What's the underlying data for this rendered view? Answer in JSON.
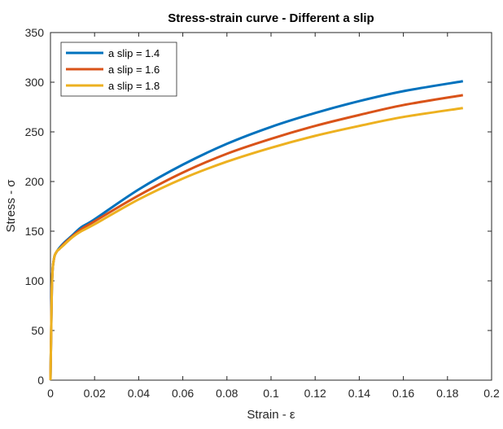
{
  "chart_data": {
    "type": "line",
    "title": "Stress-strain curve - Different a slip",
    "xlabel": "Strain - ε",
    "ylabel": "Stress - σ",
    "xlim": [
      0,
      0.2
    ],
    "ylim": [
      0,
      350
    ],
    "xticks": [
      0,
      0.02,
      0.04,
      0.06,
      0.08,
      0.1,
      0.12,
      0.14,
      0.16,
      0.18,
      0.2
    ],
    "xtick_labels": [
      "0",
      "0.02",
      "0.04",
      "0.06",
      "0.08",
      "0.1",
      "0.12",
      "0.14",
      "0.16",
      "0.18",
      "0.2"
    ],
    "yticks": [
      0,
      50,
      100,
      150,
      200,
      250,
      300,
      350
    ],
    "ytick_labels": [
      "0",
      "50",
      "100",
      "150",
      "200",
      "250",
      "300",
      "350"
    ],
    "grid": false,
    "legend_position": "top-left",
    "series": [
      {
        "name": "a slip = 1.4",
        "color": "#0072BD",
        "x": [
          0,
          0.0003,
          0.0006,
          0.001,
          0.0015,
          0.002,
          0.003,
          0.004,
          0.006,
          0.01,
          0.014,
          0.02,
          0.04,
          0.06,
          0.08,
          0.1,
          0.12,
          0.14,
          0.16,
          0.187
        ],
        "y": [
          0,
          45,
          90,
          112,
          121,
          126,
          130,
          133,
          138,
          146,
          154,
          162,
          192,
          217,
          238,
          255,
          269,
          281,
          291,
          301
        ]
      },
      {
        "name": "a slip = 1.6",
        "color": "#D95319",
        "x": [
          0,
          0.0003,
          0.0006,
          0.001,
          0.0015,
          0.002,
          0.003,
          0.004,
          0.006,
          0.01,
          0.014,
          0.02,
          0.04,
          0.06,
          0.08,
          0.1,
          0.12,
          0.14,
          0.16,
          0.187
        ],
        "y": [
          0,
          45,
          90,
          112,
          121,
          126,
          130,
          132,
          137,
          145,
          152,
          160,
          186,
          209,
          228,
          243,
          256,
          267,
          277,
          287
        ]
      },
      {
        "name": "a slip = 1.8",
        "color": "#EDB120",
        "x": [
          0,
          0.0003,
          0.0006,
          0.001,
          0.0015,
          0.002,
          0.003,
          0.004,
          0.006,
          0.01,
          0.014,
          0.02,
          0.04,
          0.06,
          0.08,
          0.1,
          0.12,
          0.14,
          0.16,
          0.187
        ],
        "y": [
          0,
          45,
          90,
          112,
          121,
          126,
          130,
          132,
          136,
          144,
          150,
          157,
          182,
          203,
          220,
          234,
          246,
          256,
          265,
          274
        ]
      }
    ]
  }
}
